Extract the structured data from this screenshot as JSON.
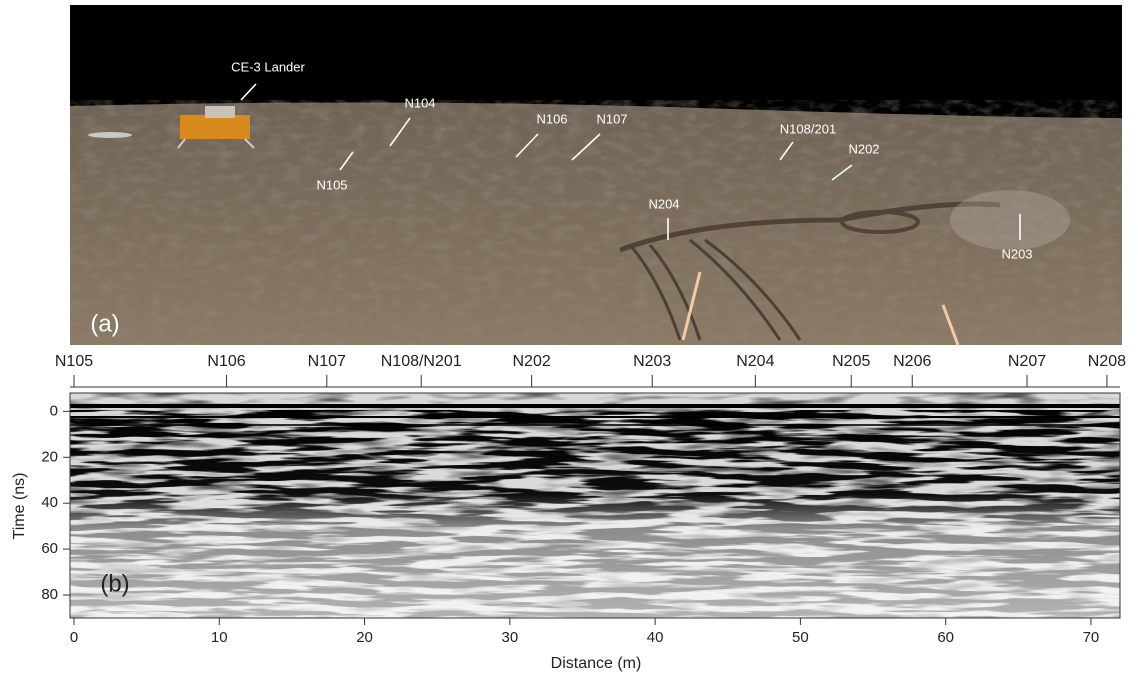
{
  "photo": {
    "panel_label": "(a)",
    "annotations": [
      "CE-3 Lander",
      "N104",
      "N105",
      "N106",
      "N107",
      "N108/201",
      "N202",
      "N204",
      "N203"
    ]
  },
  "chart_data": {
    "type": "radargram",
    "panel_label": "(b)",
    "xlabel": "Distance (m)",
    "ylabel": "Time (ns)",
    "xlim": [
      0,
      72
    ],
    "xticks": [
      0,
      10,
      20,
      30,
      40,
      50,
      60,
      70
    ],
    "ylim": [
      -8,
      90
    ],
    "y_inverted": true,
    "yticks": [
      0,
      20,
      40,
      60,
      80
    ],
    "stations": {
      "labels": [
        "N105",
        "N106",
        "N107",
        "N108/N201",
        "N202",
        "N203",
        "N204",
        "N205",
        "N206",
        "N207",
        "N208"
      ],
      "positions": [
        0,
        10.5,
        17.4,
        23.9,
        31.5,
        39.8,
        46.9,
        53.5,
        57.7,
        65.6,
        71.1
      ]
    }
  }
}
